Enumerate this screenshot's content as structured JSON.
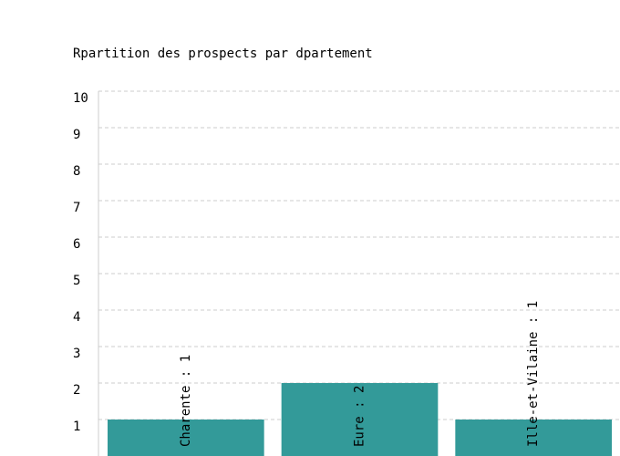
{
  "chart_data": {
    "type": "bar",
    "title": "Rpartition des prospects par dpartement",
    "xlabel": "",
    "ylabel": "",
    "categories": [
      "Charente",
      "Eure",
      "Ille-et-Vilaine"
    ],
    "values": [
      1,
      2,
      1
    ],
    "data_labels": [
      "Charente : 1",
      "Eure : 2",
      "Ille-et-Vilaine : 1"
    ],
    "ylim": [
      0,
      10
    ],
    "yticks": [
      "1",
      "2",
      "3",
      "4",
      "5",
      "6",
      "7",
      "8",
      "9",
      "10"
    ],
    "grid": true,
    "legend": "none",
    "colors": {
      "bar": "#339a99",
      "grid": "#cccccc",
      "axis": "#cccccc"
    }
  }
}
